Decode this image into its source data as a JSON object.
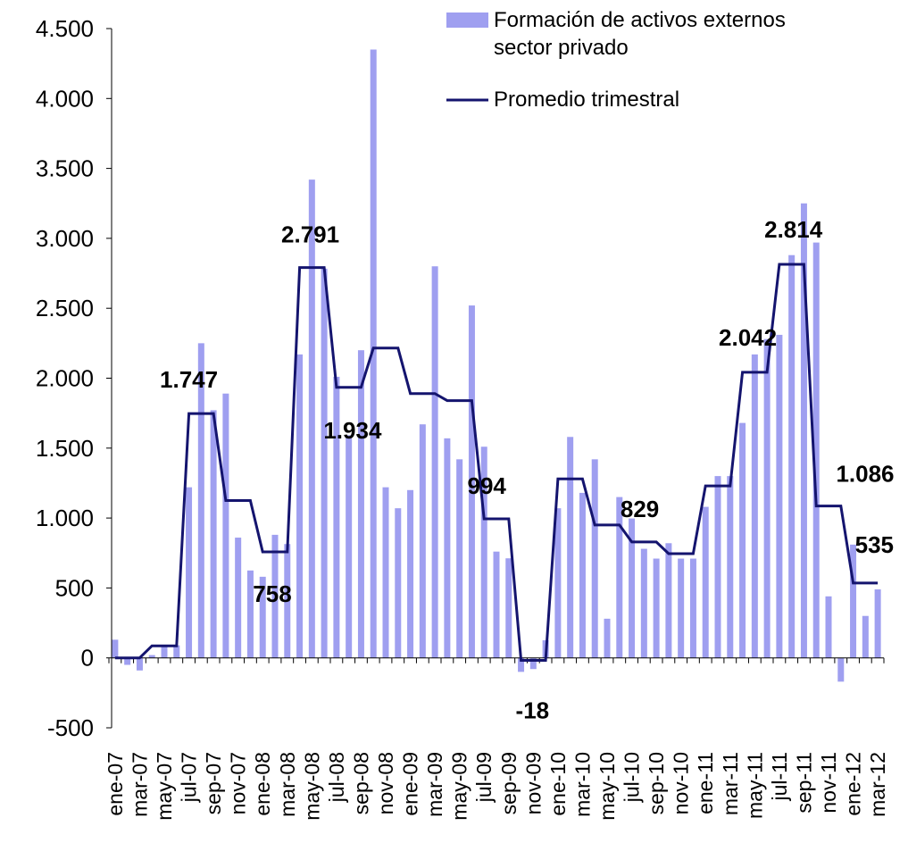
{
  "chart_data": {
    "type": "bar-line",
    "categories": [
      "ene-07",
      null,
      "mar-07",
      null,
      "may-07",
      null,
      "jul-07",
      null,
      "sep-07",
      null,
      "nov-07",
      null,
      "ene-08",
      null,
      "mar-08",
      null,
      "may-08",
      null,
      "jul-08",
      null,
      "sep-08",
      null,
      "nov-08",
      null,
      "ene-09",
      null,
      "mar-09",
      null,
      "may-09",
      null,
      "jul-09",
      null,
      "sep-09",
      null,
      "nov-09",
      null,
      "ene-10",
      null,
      "mar-10",
      null,
      "may-10",
      null,
      "jul-10",
      null,
      "sep-10",
      null,
      "nov-10",
      null,
      "ene-11",
      null,
      "mar-11",
      null,
      "may-11",
      null,
      "jul-11",
      null,
      "sep-11",
      null,
      "nov-11",
      null,
      "ene-12",
      null,
      "mar-12"
    ],
    "series": [
      {
        "name": "Formación de activos externos sector privado",
        "type": "bar",
        "color": "#9f9ff0",
        "values": [
          130,
          -50,
          -90,
          20,
          80,
          90,
          1220,
          2250,
          1771,
          1890,
          860,
          625,
          580,
          880,
          814,
          2170,
          3420,
          2783,
          2010,
          1592,
          2200,
          4350,
          1220,
          1070,
          1200,
          1670,
          2800,
          1570,
          1420,
          2520,
          1510,
          760,
          712,
          -100,
          -80,
          126,
          1070,
          1580,
          1180,
          1420,
          280,
          1150,
          997,
          780,
          710,
          820,
          710,
          710,
          1080,
          1300,
          1300,
          1680,
          2170,
          2280,
          2310,
          2880,
          3250,
          2970,
          440,
          -170,
          810,
          300,
          490
        ]
      },
      {
        "name": "Promedio trimestral",
        "type": "line",
        "color": "#14146e",
        "values": [
          0,
          0,
          0,
          86,
          86,
          86,
          1747,
          1747,
          1747,
          1125,
          1125,
          1125,
          758,
          758,
          758,
          2791,
          2791,
          2791,
          1934,
          1934,
          1934,
          2215,
          2215,
          2215,
          1890,
          1890,
          1890,
          1840,
          1840,
          1840,
          994,
          994,
          994,
          -18,
          -18,
          -18,
          1280,
          1280,
          1280,
          950,
          950,
          950,
          829,
          829,
          829,
          745,
          745,
          745,
          1230,
          1230,
          1230,
          2042,
          2042,
          2042,
          2814,
          2814,
          2814,
          1086,
          1086,
          1086,
          535,
          535,
          535
        ],
        "value_labels": [
          null,
          null,
          null,
          null,
          null,
          null,
          "1.747",
          null,
          null,
          null,
          null,
          null,
          null,
          "758",
          null,
          "2.791",
          null,
          null,
          "1.934",
          null,
          null,
          null,
          null,
          null,
          null,
          null,
          null,
          null,
          null,
          null,
          "994",
          null,
          null,
          null,
          "-18",
          null,
          null,
          null,
          null,
          null,
          null,
          null,
          "829",
          null,
          null,
          null,
          null,
          null,
          null,
          null,
          null,
          "2.042",
          null,
          null,
          null,
          "2.814",
          null,
          null,
          "1.086",
          null,
          null,
          "535",
          null
        ]
      }
    ],
    "ylim": [
      -500,
      4500
    ],
    "yticks": [
      -500,
      0,
      500,
      {
        "value": 1000,
        "label": "1.000"
      },
      {
        "value": 1500,
        "label": "1.500"
      },
      {
        "value": 2000,
        "label": "2.000"
      },
      {
        "value": 2500,
        "label": "2.500"
      },
      {
        "value": 3000,
        "label": "3.000"
      },
      {
        "value": 3500,
        "label": "3.500"
      },
      {
        "value": 4000,
        "label": "4.000"
      },
      {
        "value": 4500,
        "label": "4.500"
      }
    ],
    "legend": "top-right"
  }
}
